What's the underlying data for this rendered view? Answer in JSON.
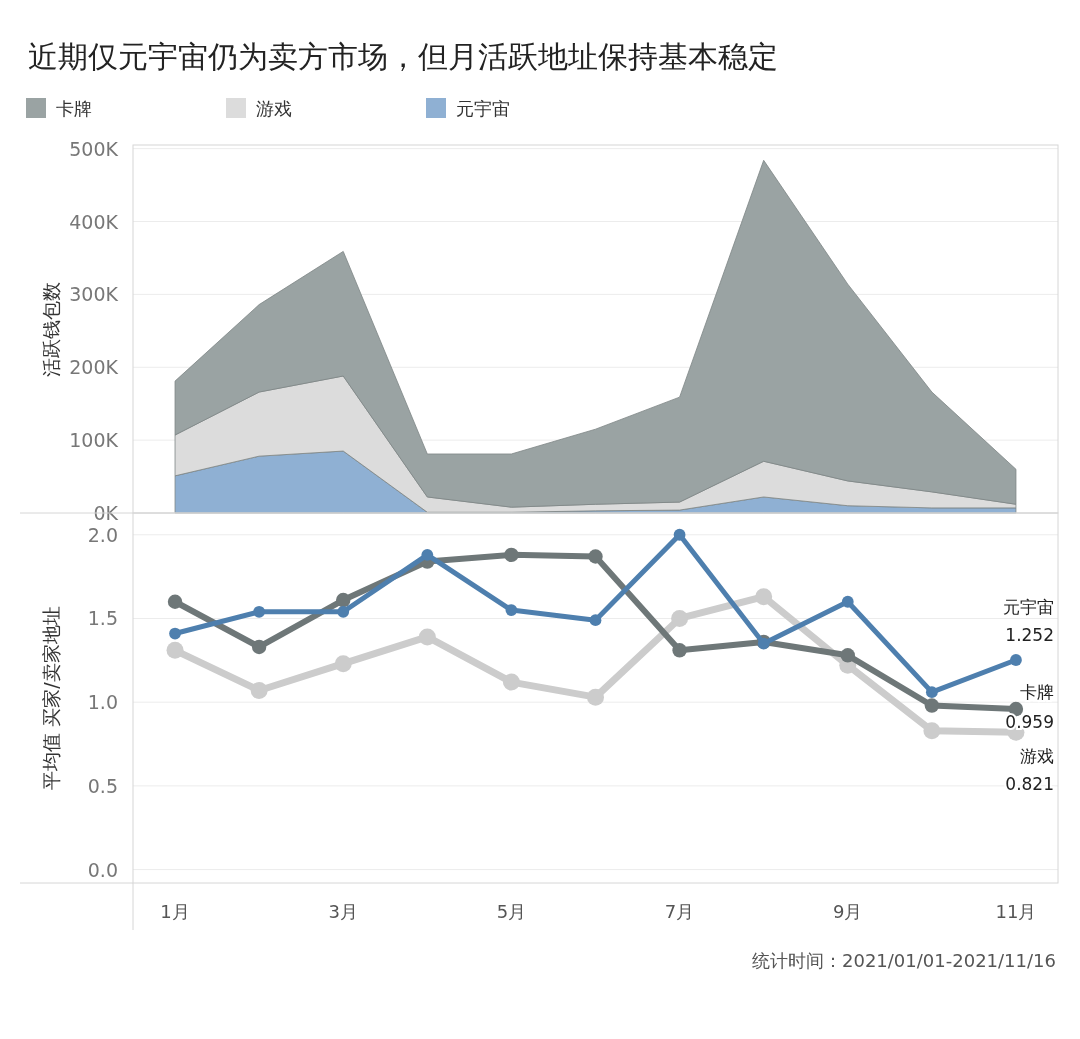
{
  "chart_data": [
    {
      "type": "area",
      "stacked": true,
      "title": "近期仅元宇宙仍为卖方市场，但月活跃地址保持基本稳定",
      "ylabel": "活跃钱包数",
      "legend": "top left",
      "grid": "y",
      "tick_labels": "y",
      "categories": [
        null,
        null,
        null,
        null,
        null,
        null,
        null,
        null,
        null,
        null,
        null
      ],
      "ylim": [
        0,
        505000
      ],
      "yticks": [
        {
          "value": 0,
          "label": "0K"
        },
        {
          "value": 100000,
          "label": "100K"
        },
        {
          "value": 200000,
          "label": "200K"
        },
        {
          "value": 300000,
          "label": "300K"
        },
        {
          "value": 400000,
          "label": "400K"
        },
        {
          "value": 500000,
          "label": "500K"
        }
      ],
      "series": [
        {
          "name": "元宇宙",
          "color": "#8fb0d3",
          "values": [
            51000,
            78000,
            85000,
            1000,
            1000,
            3000,
            4000,
            22000,
            10000,
            7000,
            7000
          ]
        },
        {
          "name": "游戏",
          "color": "#dcdcdc",
          "values": [
            56000,
            88000,
            103000,
            21000,
            7000,
            9000,
            11000,
            49000,
            34000,
            22000,
            5000
          ]
        },
        {
          "name": "卡牌",
          "color": "#9aa3a3",
          "values": [
            74000,
            120000,
            171000,
            59000,
            73000,
            103000,
            144000,
            413000,
            270000,
            137000,
            48000
          ]
        }
      ]
    },
    {
      "type": "line",
      "ylabel": "平均值 买家/卖家地址",
      "grid": "y",
      "marker": "circle",
      "line_style": "solid",
      "categories": [
        "1月",
        null,
        "3月",
        null,
        "5月",
        null,
        "7月",
        null,
        "9月",
        null,
        "11月"
      ],
      "ylim": [
        -0.08,
        2.13
      ],
      "yticks": [
        {
          "value": 0,
          "label": "0.0"
        },
        {
          "value": 0.5,
          "label": "0.5"
        },
        {
          "value": 1,
          "label": "1.0"
        },
        {
          "value": 1.5,
          "label": "1.5"
        },
        {
          "value": 2,
          "label": "2.0"
        }
      ],
      "annotations": [
        "统计时间：2021/01/01-2021/11/16"
      ],
      "series": [
        {
          "name": "游戏",
          "color": "#cccccc",
          "values": [
            1.31,
            1.07,
            1.23,
            1.39,
            1.12,
            1.03,
            1.5,
            1.63,
            1.22,
            0.83,
            0.821
          ],
          "value_labels": [
            null,
            null,
            null,
            null,
            null,
            null,
            null,
            null,
            null,
            null,
            "0.821"
          ]
        },
        {
          "name": "卡牌",
          "color": "#6e7778",
          "values": [
            1.6,
            1.33,
            1.61,
            1.84,
            1.88,
            1.87,
            1.31,
            1.36,
            1.28,
            0.98,
            0.959
          ],
          "value_labels": [
            null,
            null,
            null,
            null,
            null,
            null,
            null,
            null,
            null,
            null,
            "0.959"
          ]
        },
        {
          "name": "元宇宙",
          "color": "#4e7fae",
          "values": [
            1.41,
            1.54,
            1.54,
            1.88,
            1.55,
            1.49,
            2.0,
            1.35,
            1.6,
            1.06,
            1.252
          ],
          "value_labels": [
            null,
            null,
            null,
            null,
            null,
            null,
            null,
            null,
            null,
            null,
            "1.252"
          ]
        }
      ]
    }
  ]
}
